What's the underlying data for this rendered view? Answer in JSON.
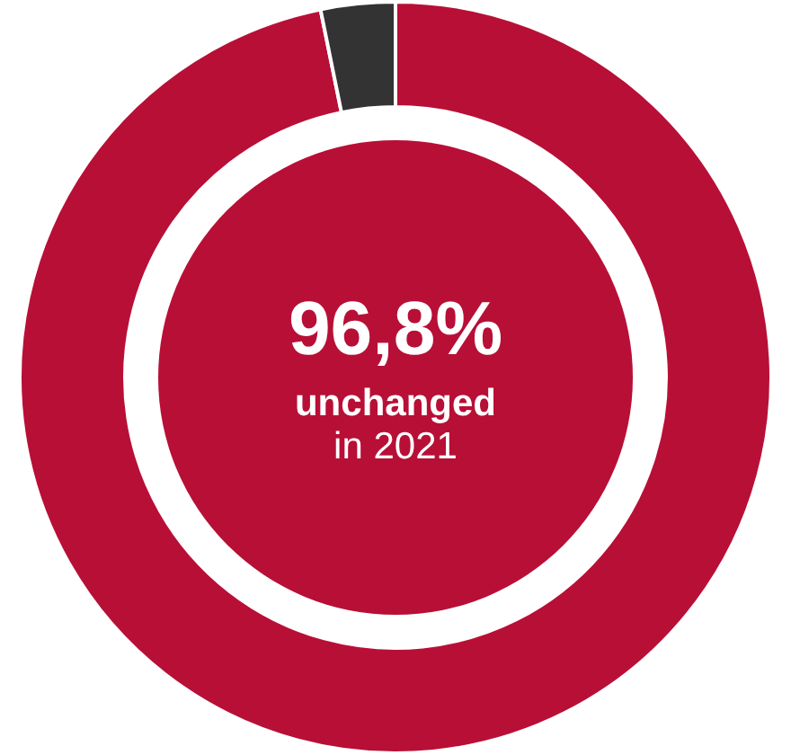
{
  "chart_data": {
    "type": "donut",
    "categories": [
      null,
      null
    ],
    "values": [
      96.8,
      3.2
    ],
    "colors": [
      "#b80f36",
      "#333333"
    ],
    "legend": false,
    "annotations": [
      "96,8%",
      "unchanged",
      "in 2021"
    ]
  }
}
